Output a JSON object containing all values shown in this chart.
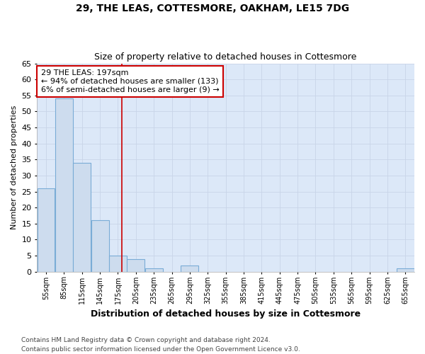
{
  "title_line1": "29, THE LEAS, COTTESMORE, OAKHAM, LE15 7DG",
  "title_line2": "Size of property relative to detached houses in Cottesmore",
  "xlabel": "Distribution of detached houses by size in Cottesmore",
  "ylabel": "Number of detached properties",
  "footnote_line1": "Contains HM Land Registry data © Crown copyright and database right 2024.",
  "footnote_line2": "Contains public sector information licensed under the Open Government Licence v3.0.",
  "bin_labels": [
    "55sqm",
    "85sqm",
    "115sqm",
    "145sqm",
    "175sqm",
    "205sqm",
    "235sqm",
    "265sqm",
    "295sqm",
    "325sqm",
    "355sqm",
    "385sqm",
    "415sqm",
    "445sqm",
    "475sqm",
    "505sqm",
    "535sqm",
    "565sqm",
    "595sqm",
    "625sqm",
    "655sqm"
  ],
  "bin_edges": [
    55,
    85,
    115,
    145,
    175,
    205,
    235,
    265,
    295,
    325,
    355,
    385,
    415,
    445,
    475,
    505,
    535,
    565,
    595,
    625,
    655
  ],
  "bar_heights": [
    26,
    54,
    34,
    16,
    5,
    4,
    1,
    0,
    2,
    0,
    0,
    0,
    0,
    0,
    0,
    0,
    0,
    0,
    0,
    0,
    1
  ],
  "bar_color": "#cddcee",
  "bar_edge_color": "#7aacd6",
  "property_size": 197,
  "vline_color": "#cc0000",
  "annotation_line1": "29 THE LEAS: 197sqm",
  "annotation_line2": "← 94% of detached houses are smaller (133)",
  "annotation_line3": "6% of semi-detached houses are larger (9) →",
  "annotation_box_color": "#ffffff",
  "annotation_box_edge": "#cc0000",
  "ylim": [
    0,
    65
  ],
  "yticks": [
    0,
    5,
    10,
    15,
    20,
    25,
    30,
    35,
    40,
    45,
    50,
    55,
    60,
    65
  ],
  "grid_color": "#c8d4e8",
  "plot_bg_color": "#dce8f8",
  "fig_bg_color": "#ffffff",
  "bin_width": 30
}
